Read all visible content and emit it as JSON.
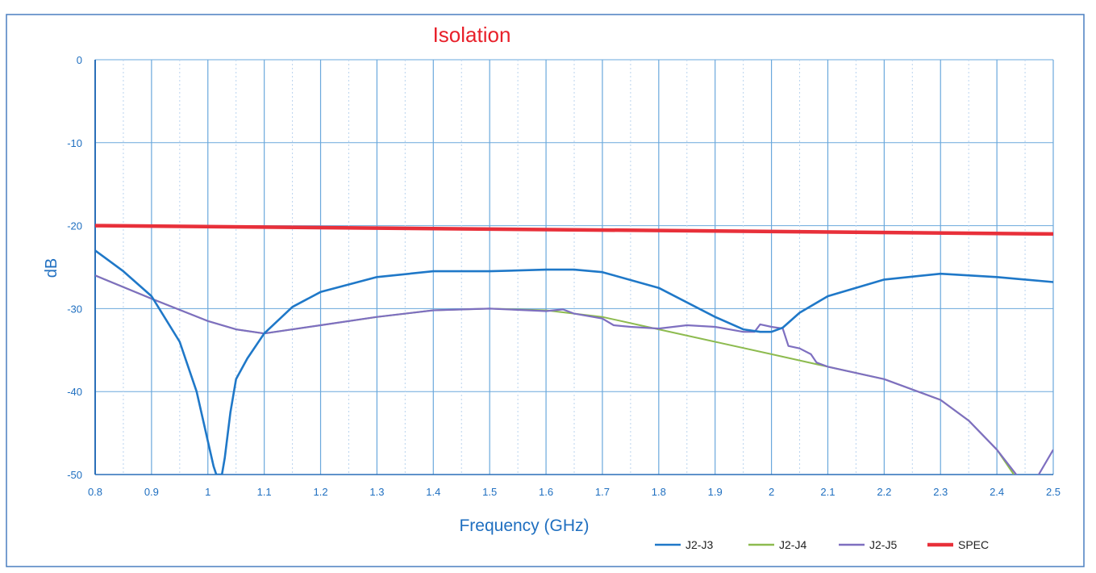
{
  "chart_data": {
    "type": "line",
    "title": "Isolation",
    "xlabel": "Frequency (GHz)",
    "ylabel": "dB",
    "xlim": [
      0.8,
      2.5
    ],
    "ylim": [
      -50,
      0
    ],
    "x_ticks": [
      "0.8",
      "0.9",
      "1",
      "1.1",
      "1.2",
      "1.3",
      "1.4",
      "1.5",
      "1.6",
      "1.7",
      "1.8",
      "1.9",
      "2",
      "2.1",
      "2.2",
      "2.3",
      "2.4",
      "2.5"
    ],
    "y_ticks": [
      "0",
      "-10",
      "-20",
      "-30",
      "-40",
      "-50"
    ],
    "grid": true,
    "legend_position": "bottom-right",
    "colors": {
      "title": "#e8202a",
      "axis_text": "#1f6fc0",
      "grid": "#6aa8dc",
      "J2-J3": "#1f78c8",
      "J2-J4": "#8dbb4f",
      "J2-J5": "#7e6fc0",
      "SPEC": "#e8303a"
    },
    "series": [
      {
        "name": "J2-J3",
        "x": [
          0.8,
          0.85,
          0.9,
          0.95,
          0.98,
          1.0,
          1.01,
          1.015,
          1.02,
          1.025,
          1.03,
          1.04,
          1.05,
          1.07,
          1.1,
          1.15,
          1.2,
          1.3,
          1.4,
          1.5,
          1.6,
          1.65,
          1.7,
          1.8,
          1.9,
          1.95,
          1.98,
          2.0,
          2.02,
          2.05,
          2.1,
          2.2,
          2.3,
          2.4,
          2.5
        ],
        "y": [
          -23,
          -25.5,
          -28.5,
          -34,
          -40,
          -46,
          -49,
          -50,
          -50,
          -50,
          -48,
          -42.5,
          -38.5,
          -36,
          -33,
          -29.8,
          -28,
          -26.2,
          -25.5,
          -25.5,
          -25.3,
          -25.3,
          -25.6,
          -27.5,
          -31,
          -32.5,
          -32.8,
          -32.8,
          -32.3,
          -30.5,
          -28.5,
          -26.5,
          -25.8,
          -26.2,
          -26.8
        ]
      },
      {
        "name": "J2-J4",
        "x": [
          0.8,
          0.9,
          1.0,
          1.05,
          1.1,
          1.2,
          1.3,
          1.4,
          1.5,
          1.6,
          1.7,
          1.8,
          1.9,
          2.0,
          2.1,
          2.2,
          2.3,
          2.35,
          2.4,
          2.43
        ],
        "y": [
          -26,
          -28.8,
          -31.5,
          -32.5,
          -33,
          -32,
          -31,
          -30.2,
          -30,
          -30.2,
          -31,
          -32.5,
          -34,
          -35.5,
          -37,
          -38.5,
          -41,
          -43.5,
          -47,
          -50
        ]
      },
      {
        "name": "J2-J5",
        "x": [
          0.8,
          0.9,
          1.0,
          1.05,
          1.1,
          1.2,
          1.3,
          1.4,
          1.5,
          1.6,
          1.63,
          1.65,
          1.7,
          1.72,
          1.75,
          1.8,
          1.85,
          1.9,
          1.95,
          1.97,
          1.98,
          2.0,
          2.02,
          2.03,
          2.05,
          2.07,
          2.08,
          2.1,
          2.2,
          2.3,
          2.35,
          2.4,
          2.44,
          2.47,
          2.5
        ],
        "y": [
          -26,
          -28.8,
          -31.5,
          -32.5,
          -33,
          -32,
          -31,
          -30.2,
          -30,
          -30.3,
          -30.1,
          -30.6,
          -31.2,
          -32,
          -32.2,
          -32.4,
          -32,
          -32.2,
          -32.8,
          -32.8,
          -31.9,
          -32.2,
          -32.4,
          -34.5,
          -34.8,
          -35.5,
          -36.5,
          -37,
          -38.5,
          -41,
          -43.5,
          -47,
          -50.5,
          -50.5,
          -47
        ]
      },
      {
        "name": "SPEC",
        "x": [
          0.8,
          2.5
        ],
        "y": [
          -20,
          -21
        ]
      }
    ]
  }
}
